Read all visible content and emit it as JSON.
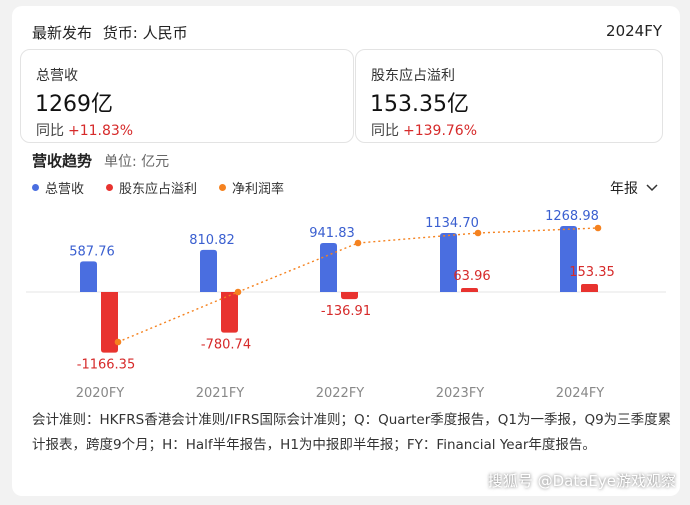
{
  "header": {
    "title": "最新发布",
    "currency": "货币: 人民币",
    "fiscal_year": "2024FY"
  },
  "metrics": [
    {
      "label": "总营收",
      "value": "1269亿",
      "yoy_label": "同比",
      "yoy_change": "+11.83%"
    },
    {
      "label": "股东应占溢利",
      "value": "153.35亿",
      "yoy_label": "同比",
      "yoy_change": "+139.76%"
    }
  ],
  "trend": {
    "title": "营收趋势",
    "unit": "单位: 亿元",
    "period_selector": "年报"
  },
  "legend": [
    {
      "label": "总营收",
      "color": "#4a6ee0"
    },
    {
      "label": "股东应占溢利",
      "color": "#e8332f"
    },
    {
      "label": "净利润率",
      "color": "#f5821f"
    }
  ],
  "chart_data": {
    "type": "bar",
    "categories": [
      "2020FY",
      "2021FY",
      "2022FY",
      "2023FY",
      "2024FY"
    ],
    "series": [
      {
        "name": "总营收",
        "values": [
          587.76,
          810.82,
          941.83,
          1134.7,
          1268.98
        ],
        "labels": [
          "587.76",
          "810.82",
          "941.83",
          "1134.70",
          "1268.98"
        ],
        "color": "#4a6ee0"
      },
      {
        "name": "股东应占溢利",
        "values": [
          -1166.35,
          -780.74,
          -136.91,
          63.96,
          153.35
        ],
        "labels": [
          "-1166.35",
          "-780.74",
          "-136.91",
          "63.96",
          "153.35"
        ],
        "color": "#e8332f"
      },
      {
        "name": "净利润率",
        "type": "line",
        "values": [
          -198.4,
          -96.3,
          -14.5,
          5.6,
          12.1
        ],
        "color": "#f5821f"
      }
    ]
  },
  "footnote": "会计准则：HKFRS香港会计准则/IFRS国际会计准则；Q：Quarter季度报告，Q1为一季报，Q9为三季度累计报表，跨度9个月；H：Half半年报告，H1为中报即半年报；FY：Financial Year年度报告。",
  "watermark": "搜狐号 @DataEye游戏观察"
}
